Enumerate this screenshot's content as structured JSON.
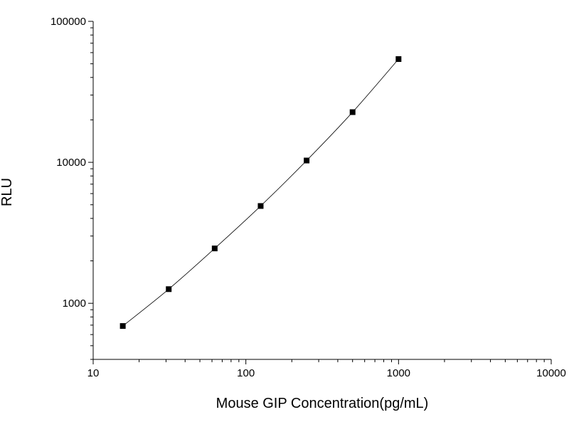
{
  "chart_data": {
    "type": "scatter",
    "title": "",
    "xlabel": "Mouse GIP Concentration(pg/mL)",
    "ylabel": "RLU",
    "xscale": "log",
    "yscale": "log",
    "xlim": [
      10,
      10000
    ],
    "ylim": [
      400,
      100000
    ],
    "grid": false,
    "x_ticks": [
      {
        "value": 10,
        "label": "10"
      },
      {
        "value": 100,
        "label": "100"
      },
      {
        "value": 1000,
        "label": "1000"
      },
      {
        "value": 10000,
        "label": "10000"
      }
    ],
    "y_ticks": [
      {
        "value": 1000,
        "label": "1000"
      },
      {
        "value": 10000,
        "label": "10000"
      },
      {
        "value": 100000,
        "label": "100000"
      }
    ],
    "series": [
      {
        "x": [
          15.63,
          31.25,
          62.5,
          125,
          250,
          500,
          1000
        ],
        "y": [
          690,
          1260,
          2450,
          4900,
          10300,
          22700,
          54000
        ],
        "marker": "square",
        "color": "#000000",
        "connected": true
      }
    ]
  }
}
